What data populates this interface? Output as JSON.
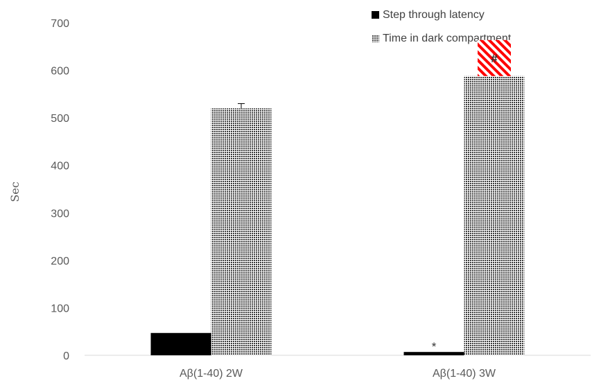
{
  "chart_data": {
    "type": "bar",
    "title": "",
    "xlabel": "",
    "ylabel": "Sec",
    "categories": [
      "Aβ(1-40) 2W",
      "Aβ(1-40) 3W"
    ],
    "ylim": [
      0,
      700
    ],
    "yticks": [
      0,
      100,
      200,
      300,
      400,
      500,
      600,
      700
    ],
    "grid": false,
    "legend_position": "top-right",
    "series": [
      {
        "name": "Step through latency",
        "values": [
          47,
          7
        ],
        "color": "#000000",
        "pattern": "solid"
      },
      {
        "name": "Time in dark compartment",
        "values": [
          520,
          588
        ],
        "error": [
          10,
          0
        ],
        "color": "#3a3a3a",
        "pattern": "checker"
      }
    ],
    "annotations": [
      {
        "text": "*",
        "category": 1,
        "series": 0
      },
      {
        "text": "#",
        "category": 1,
        "series": 1
      }
    ],
    "highlight_color": "#ff0000"
  }
}
